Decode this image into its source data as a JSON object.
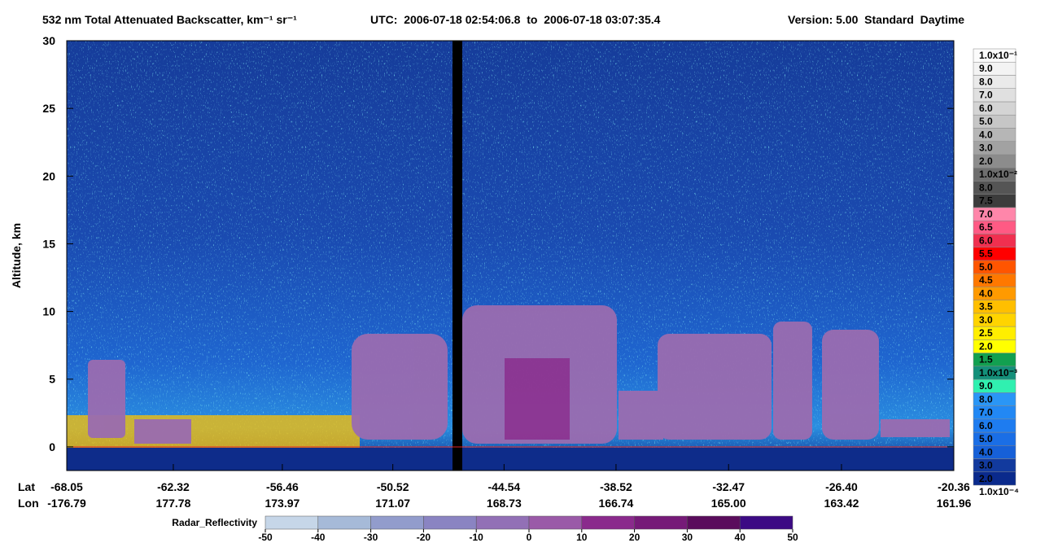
{
  "chart_data": {
    "type": "curtain",
    "title": "532 nm Total Attenuated Backscatter, km⁻¹ sr⁻¹",
    "time_range": "UTC:  2006-07-18 02:54:06.8  to  2006-07-18 03:07:35.4",
    "version": "Version: 5.00  Standard  Daytime",
    "ylabel": "Altitude, km",
    "ylim": [
      -1.75,
      30
    ],
    "yticks": [
      0,
      5,
      10,
      15,
      20,
      25,
      30
    ],
    "xlim": [
      -68.05,
      -20.36
    ],
    "lat_label": "Lat",
    "lon_label": "Lon",
    "lat_ticks": [
      -68.05,
      -62.32,
      -56.46,
      -50.52,
      -44.54,
      -38.52,
      -32.47,
      -26.4,
      -20.36
    ],
    "lat_tick_labels": [
      "-68.05",
      "-62.32",
      "-56.46",
      "-50.52",
      "-44.54",
      "-38.52",
      "-32.47",
      "-26.40",
      "-20.36"
    ],
    "lon_ticks": [
      -176.79,
      177.78,
      173.97,
      171.07,
      168.73,
      166.74,
      165,
      163.42,
      161.96
    ],
    "lon_tick_labels": [
      "-176.79",
      "177.78",
      "173.97",
      "171.07",
      "168.73",
      "166.74",
      "165.00",
      "163.42",
      "161.96"
    ],
    "backscatter_scale": {
      "ticks": [
        {
          "value": 0.0001,
          "label": "1.0x10⁻⁴"
        },
        {
          "value": 0.0002,
          "label": "2.0"
        },
        {
          "value": 0.0003,
          "label": "3.0"
        },
        {
          "value": 0.0004,
          "label": "4.0"
        },
        {
          "value": 0.0005,
          "label": "5.0"
        },
        {
          "value": 0.0006,
          "label": "6.0"
        },
        {
          "value": 0.0007,
          "label": "7.0"
        },
        {
          "value": 0.0008,
          "label": "8.0"
        },
        {
          "value": 0.0009,
          "label": "9.0"
        },
        {
          "value": 0.001,
          "label": "1.0x10⁻³"
        },
        {
          "value": 0.0015,
          "label": "1.5"
        },
        {
          "value": 0.002,
          "label": "2.0"
        },
        {
          "value": 0.0025,
          "label": "2.5"
        },
        {
          "value": 0.003,
          "label": "3.0"
        },
        {
          "value": 0.0035,
          "label": "3.5"
        },
        {
          "value": 0.004,
          "label": "4.0"
        },
        {
          "value": 0.0045,
          "label": "4.5"
        },
        {
          "value": 0.005,
          "label": "5.0"
        },
        {
          "value": 0.0055,
          "label": "5.5"
        },
        {
          "value": 0.006,
          "label": "6.0"
        },
        {
          "value": 0.0065,
          "label": "6.5"
        },
        {
          "value": 0.007,
          "label": "7.0"
        },
        {
          "value": 0.0075,
          "label": "7.5"
        },
        {
          "value": 0.008,
          "label": "8.0"
        },
        {
          "value": 0.01,
          "label": "1.0x10⁻²"
        },
        {
          "value": 0.02,
          "label": "2.0"
        },
        {
          "value": 0.03,
          "label": "3.0"
        },
        {
          "value": 0.04,
          "label": "4.0"
        },
        {
          "value": 0.05,
          "label": "5.0"
        },
        {
          "value": 0.06,
          "label": "6.0"
        },
        {
          "value": 0.07,
          "label": "7.0"
        },
        {
          "value": 0.08,
          "label": "8.0"
        },
        {
          "value": 0.09,
          "label": "9.0"
        },
        {
          "value": 0.1,
          "label": "1.0x10⁻¹"
        }
      ],
      "colors": [
        "#0a2a8c",
        "#123a9e",
        "#1660d8",
        "#1a6ee6",
        "#1e7cf0",
        "#2288f4",
        "#2a96f6",
        "#30f0b0",
        "#14907a",
        "#12a050",
        "#ffff00",
        "#ffee00",
        "#ffd400",
        "#ffbf00",
        "#ff9a00",
        "#ff7800",
        "#ff5500",
        "#ff0000",
        "#f03050",
        "#ff5a84",
        "#ff86aa",
        "#3c3c3c",
        "#555555",
        "#6e6e6e",
        "#8c8c8c",
        "#a2a2a2",
        "#b6b6b6",
        "#c6c6c6",
        "#d4d4d4",
        "#e0e0e0",
        "#eaeaea",
        "#f3f3f3",
        "#fbfbfb"
      ]
    },
    "radar_scale": {
      "label": "Radar_Reflectivity",
      "ticks": [
        -50,
        -40,
        -30,
        -20,
        -10,
        0,
        10,
        20,
        30,
        40,
        50
      ],
      "colors": [
        "#c6d6e8",
        "#a6bad8",
        "#929ccc",
        "#8a84c2",
        "#9270b6",
        "#9a5aa8",
        "#8a2a8c",
        "#761a78",
        "#5a0c5c",
        "#3c0a84"
      ]
    }
  }
}
